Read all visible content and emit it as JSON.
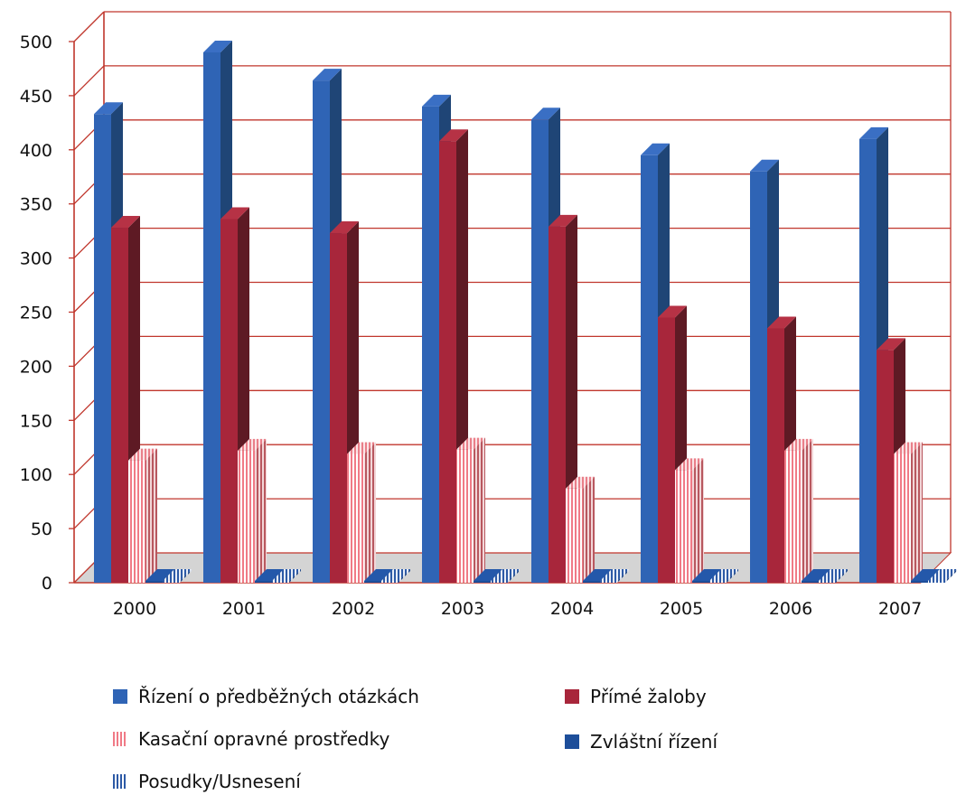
{
  "chart_data": {
    "type": "bar",
    "categories": [
      "2000",
      "2001",
      "2002",
      "2003",
      "2004",
      "2005",
      "2006",
      "2007"
    ],
    "series": [
      {
        "name": "Řízení o předběžných otázkách",
        "values": [
          433,
          490,
          464,
          440,
          428,
          395,
          380,
          410
        ],
        "color": "#2f64b5",
        "pattern": "solid"
      },
      {
        "name": "Přímé žaloby",
        "values": [
          328,
          336,
          323,
          408,
          329,
          245,
          235,
          215
        ],
        "color": "#a8263b",
        "pattern": "solid"
      },
      {
        "name": "Kasační opravné prostředky",
        "values": [
          113,
          122,
          119,
          123,
          87,
          104,
          122,
          119
        ],
        "color": "#f07a86",
        "pattern": "vertical-stripes"
      },
      {
        "name": "Zvláštní řízení",
        "values": [
          0,
          0,
          0,
          0,
          0,
          0,
          0,
          0
        ],
        "color": "#1d4e9a",
        "pattern": "solid"
      },
      {
        "name": "Posudky/Usnesení",
        "values": [
          0,
          0,
          0,
          0,
          0,
          0,
          0,
          0
        ],
        "color": "#2d5aa6",
        "pattern": "vertical-stripes"
      }
    ],
    "ylim": [
      0,
      500
    ],
    "yticks": [
      "0",
      "50",
      "100",
      "150",
      "200",
      "250",
      "300",
      "350",
      "400",
      "450",
      "500"
    ],
    "grid": true,
    "grid_color": "#c0362c",
    "floor_color": "#d4d4d4",
    "legend_position": "bottom"
  }
}
